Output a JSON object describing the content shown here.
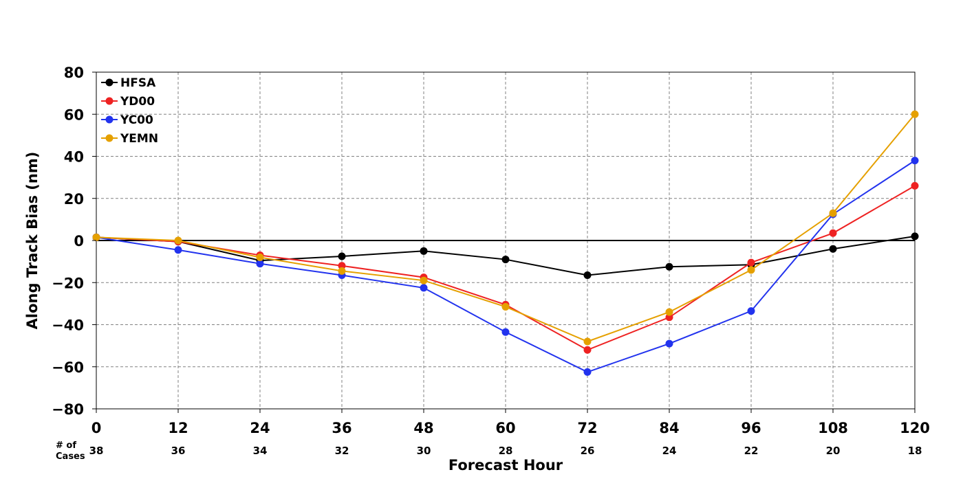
{
  "chart_data": {
    "type": "line",
    "xlabel": "Forecast Hour",
    "ylabel": "Along Track Bias (nm)",
    "x": [
      0,
      12,
      24,
      36,
      48,
      60,
      72,
      84,
      96,
      108,
      120
    ],
    "xlim": [
      0,
      120
    ],
    "ylim": [
      -80,
      80
    ],
    "yticks": [
      -80,
      -60,
      -40,
      -20,
      0,
      20,
      40,
      60,
      80
    ],
    "ytick_labels": [
      "−80",
      "−60",
      "−40",
      "−20",
      "0",
      "20",
      "40",
      "60",
      "80"
    ],
    "grid": true,
    "legend_position": "top-left",
    "cases_header": [
      "# of",
      "Cases"
    ],
    "cases": [
      38,
      36,
      34,
      32,
      30,
      28,
      26,
      24,
      22,
      20,
      18
    ],
    "series": [
      {
        "name": "HFSA",
        "color": "#000000",
        "values": [
          1.5,
          -0.5,
          -9.5,
          -7.5,
          -5,
          -9,
          -16.5,
          -12.5,
          -11.5,
          -4,
          2
        ]
      },
      {
        "name": "YD00",
        "color": "#ee2222",
        "values": [
          1.5,
          -0.5,
          -7,
          -12,
          -17.5,
          -30.5,
          -52,
          -36.5,
          -10.5,
          3.5,
          26
        ]
      },
      {
        "name": "YC00",
        "color": "#2233ee",
        "values": [
          1.5,
          -4.5,
          -11,
          -16.5,
          -22.5,
          -43.5,
          -62.5,
          -49,
          -33.5,
          12.5,
          38
        ]
      },
      {
        "name": "YEMN",
        "color": "#e5a000",
        "values": [
          1.5,
          0,
          -8,
          -14.5,
          -19,
          -31.5,
          -48,
          -34,
          -14,
          13,
          60
        ]
      }
    ]
  }
}
